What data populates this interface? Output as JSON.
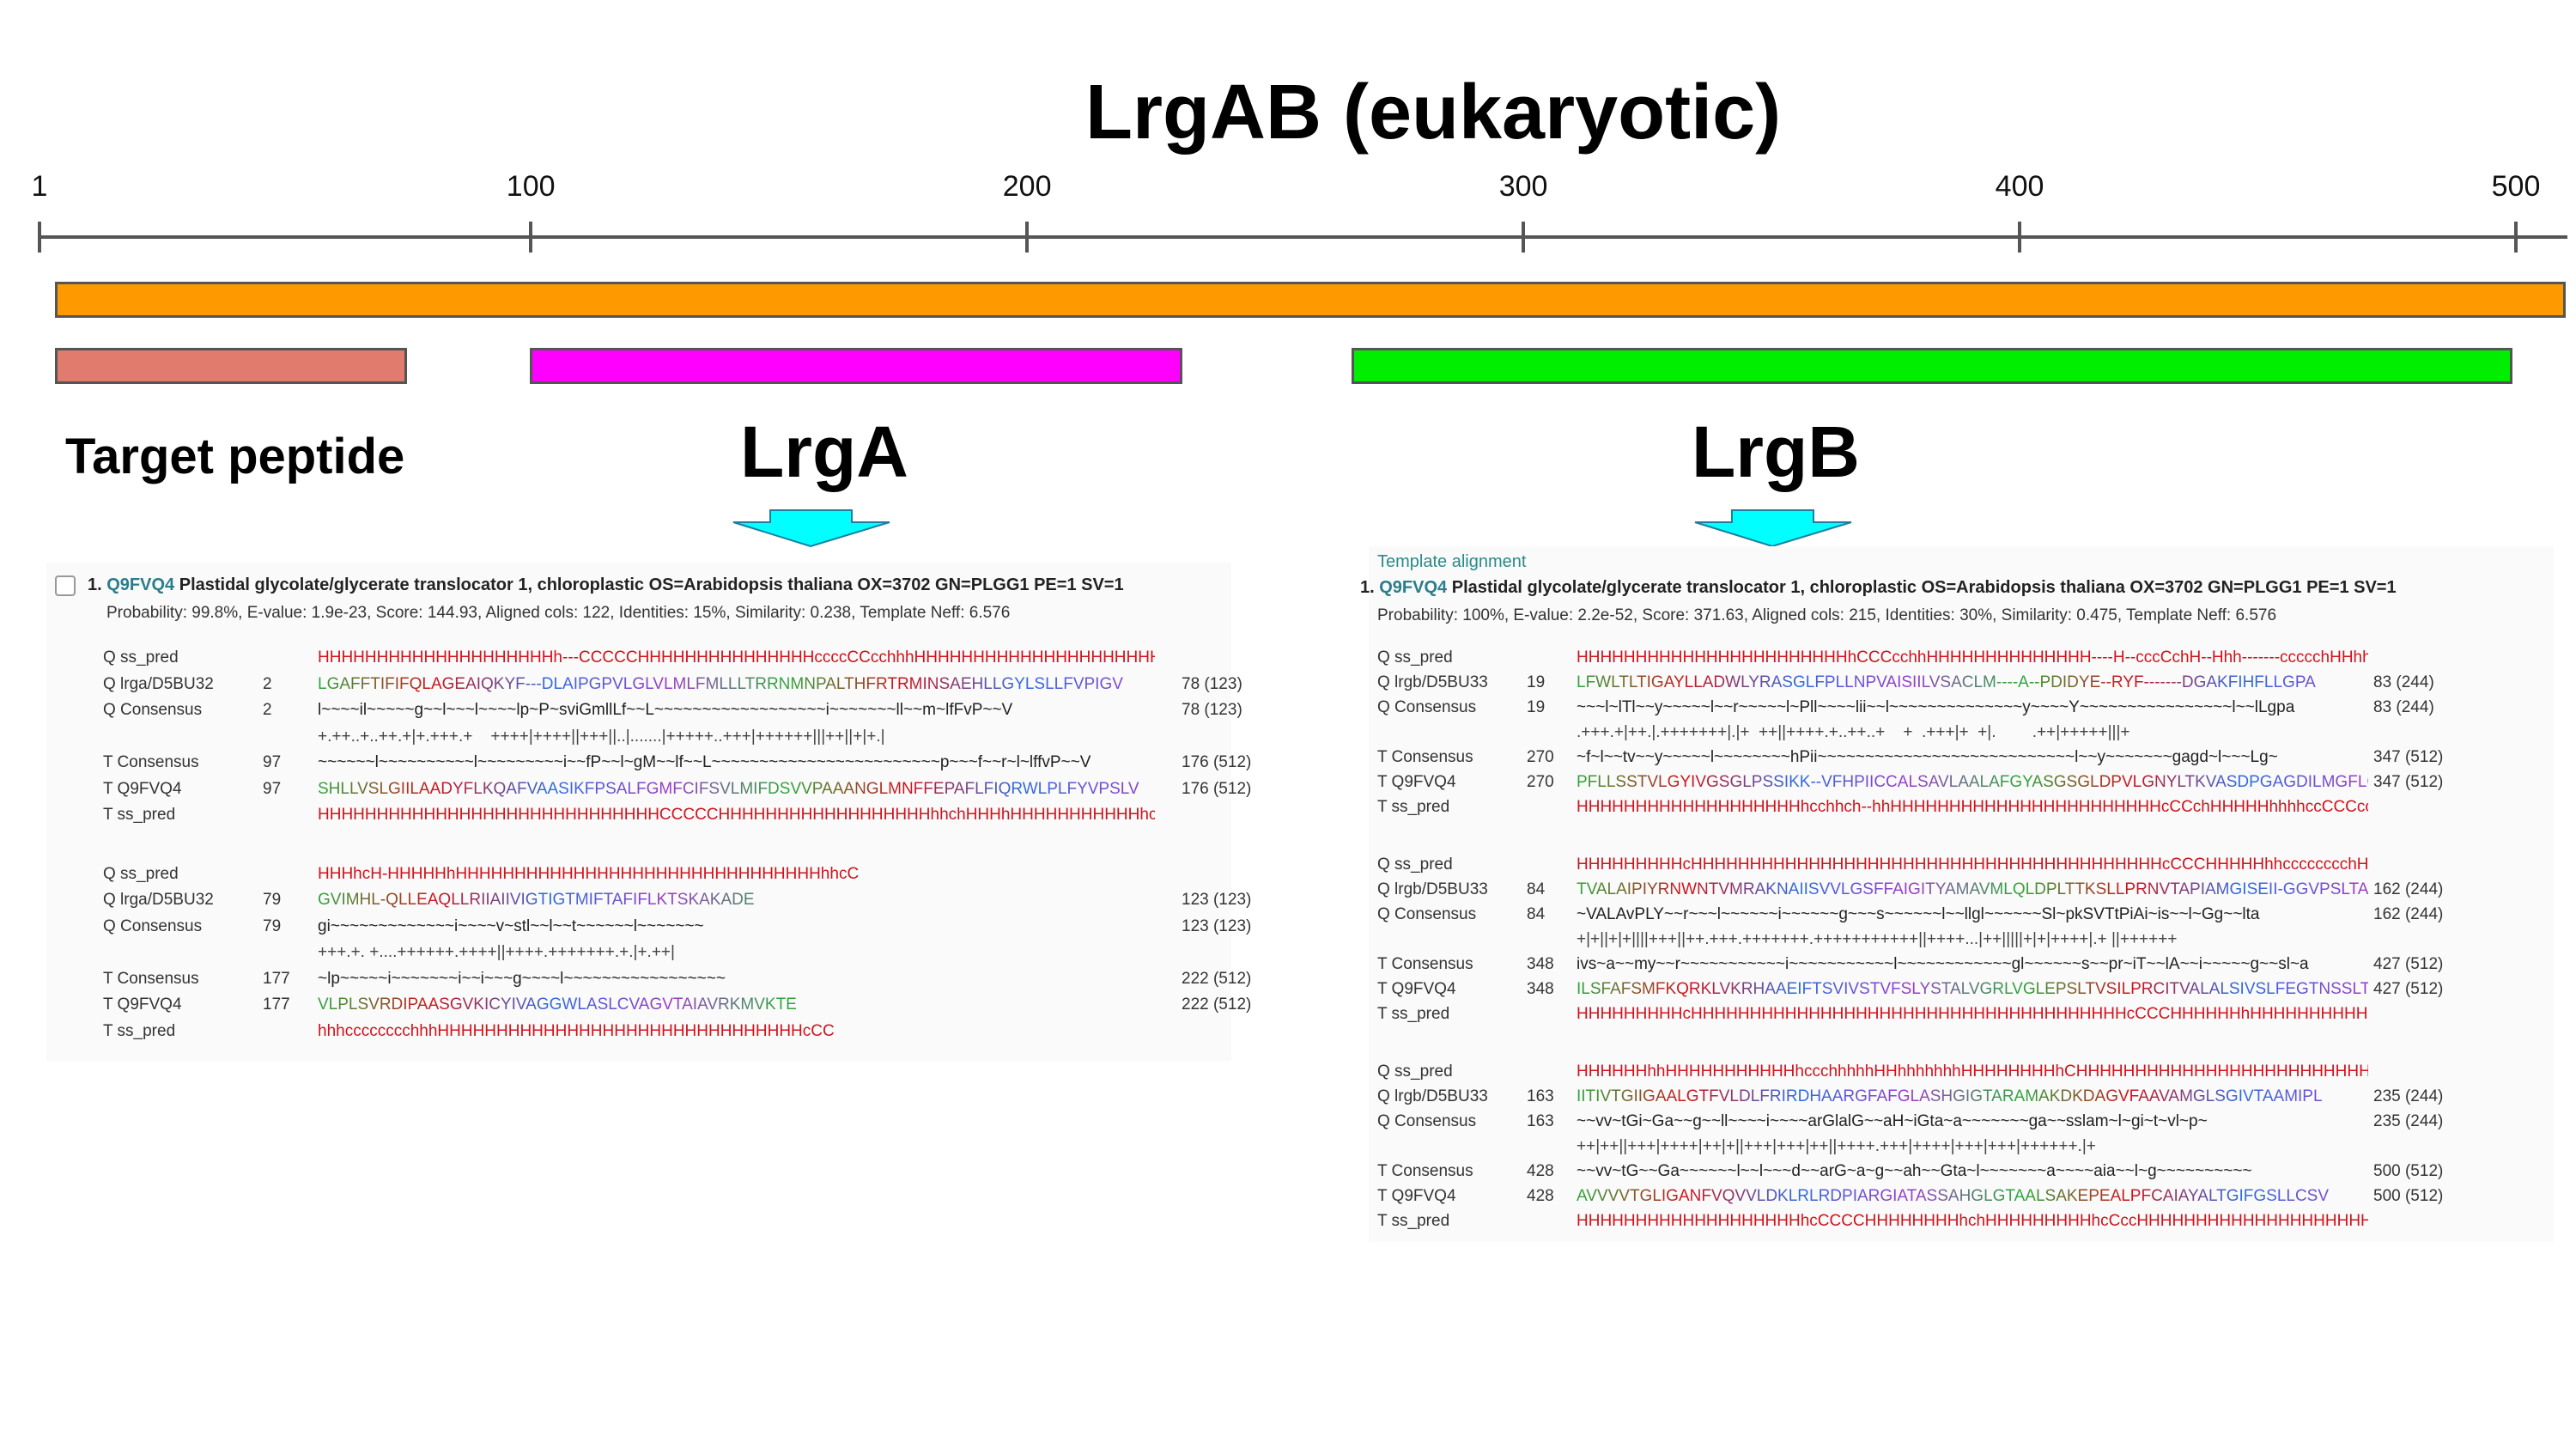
{
  "title": "LrgAB (eukaryotic)",
  "scale": {
    "ticks": [
      {
        "label": "1",
        "pos": 1
      },
      {
        "label": "100",
        "pos": 100
      },
      {
        "label": "200",
        "pos": 200
      },
      {
        "label": "300",
        "pos": 300
      },
      {
        "label": "400",
        "pos": 400
      },
      {
        "label": "500",
        "pos": 500
      }
    ]
  },
  "domains": {
    "full": {
      "color": "#ff9900"
    },
    "target": {
      "label": "Target peptide",
      "color": "#e07b6e"
    },
    "lrga": {
      "label": "LrgA",
      "color": "#ff00ff"
    },
    "lrgb": {
      "label": "LrgB",
      "color": "#00ee00"
    }
  },
  "arrow_color": "#00ffff",
  "left_panel": {
    "header_index": "1.",
    "header_id": "Q9FVQ4",
    "header_text": " Plastidal glycolate/glycerate translocator 1, chloroplastic OS=Arabidopsis thaliana OX=3702 GN=PLGG1 PE=1 SV=1",
    "stats": "Probability: 99.8%,    E-value: 1.9e-23,    Score: 144.93,    Aligned cols: 122,    Identities: 15%,    Similarity: 0.238,    Template Neff: 6.576",
    "blocks": [
      {
        "rows": [
          {
            "label": "Q ss_pred",
            "num": "",
            "seq": "HHHHHHHHHHHHHHHHHHHHh---CCCCCHHHHHHHHHHHHHHHccccCCcchhhHHHHHHHHHHHHHHHHHHHHHHHHHHHH",
            "end": "",
            "kind": "ss"
          },
          {
            "label": "Q lrga/D5BU32",
            "num": "2",
            "seq": "LGAFFTIFIFQLAGEAIQKYF---DLAIPGPVLGLVLMLFMLLLTRRNMNPALTHFRTRMINSAEHLLGYLSLLFVPIGV",
            "end": "78 (123)",
            "kind": "aa"
          },
          {
            "label": "Q Consensus",
            "num": "2",
            "seq": "l~~~~il~~~~~g~~l~~~l~~~~lp~P~sviGmllLf~~L~~~~~~~~~~~~~~~~~~i~~~~~~~ll~~m~lfFvP~~V",
            "end": "78 (123)",
            "kind": "cons"
          },
          {
            "label": "",
            "num": "",
            "seq": "+.++..+..++.+|+.+++.+    ++++|++++||+++||..|.......|+++++..+++|++++++|||++||+|+.|",
            "end": "",
            "kind": "match"
          },
          {
            "label": "T Consensus",
            "num": "97",
            "seq": "~~~~~~l~~~~~~~~~~l~~~~~~~~~i~~fP~~l~gM~~lf~~L~~~~~~~~~~~~~~~~~~~~~~~~p~~~f~~r~l~lffvP~~V",
            "end": "176 (512)",
            "kind": "cons"
          },
          {
            "label": "T Q9FVQ4",
            "num": "97",
            "seq": "SHLLVSLGIILAADYFLKQAFVAASIKFPSALFGMFCIFSVLMIFDSVVPAAANGLMNFFEPAFLFIQRWLPLFYVPSLV",
            "end": "176 (512)",
            "kind": "aa"
          },
          {
            "label": "T ss_pred",
            "num": "",
            "seq": "HHHHHHHHHHHHHHHHHHHHHHHHHHHHHCCCCCHHHHHHHHHHHHHHHHHHhhchHHHhHHHHHHHHHHHhcccccchHHc",
            "end": "",
            "kind": "ss"
          }
        ]
      },
      {
        "rows": [
          {
            "label": "Q ss_pred",
            "num": "",
            "seq": "HHHhcH-HHHHHhHHHHHHHHHHHHHHHHHHHHHHHHHHHHHHHhhcC",
            "end": "",
            "kind": "ss"
          },
          {
            "label": "Q lrga/D5BU32",
            "num": "79",
            "seq": "GVIMHL-QLLEAQLLRIIAIIVIGTIGTMIFTAFIFLKTSKAKADE",
            "end": "123 (123)",
            "kind": "aa"
          },
          {
            "label": "Q Consensus",
            "num": "79",
            "seq": "gi~~~~~~~~~~~~~i~~~~v~stl~~l~~t~~~~~~l~~~~~~~",
            "end": "123 (123)",
            "kind": "cons"
          },
          {
            "label": "",
            "num": "",
            "seq": "+++.+. +....++++++.++++||++++.+++++++.+.|+.++|",
            "end": "",
            "kind": "match"
          },
          {
            "label": "T Consensus",
            "num": "177",
            "seq": "~lp~~~~~i~~~~~~~i~~i~~~g~~~~l~~~~~~~~~~~~~~~~~",
            "end": "222 (512)",
            "kind": "cons"
          },
          {
            "label": "T Q9FVQ4",
            "num": "177",
            "seq": "VLPLSVRDIPAASGVKICYIVAGGWLASLCVAGVTAIAVRKMVKTE",
            "end": "222 (512)",
            "kind": "aa"
          },
          {
            "label": "T ss_pred",
            "num": "",
            "seq": "hhhcccccccchhhHHHHHHHHHHHHHHHHHHHHHHHHHHHHHHHcCC",
            "end": "",
            "kind": "ss"
          }
        ]
      }
    ]
  },
  "right_panel": {
    "template_label": "Template alignment",
    "header_index": "1.",
    "header_id": "Q9FVQ4",
    "header_text": " Plastidal glycolate/glycerate translocator 1, chloroplastic OS=Arabidopsis thaliana OX=3702 GN=PLGG1 PE=1 SV=1",
    "stats": "Probability: 100%,    E-value: 2.2e-52,    Score: 371.63,    Aligned cols: 215,    Identities: 30%,    Similarity: 0.475,    Template Neff: 6.576",
    "blocks": [
      {
        "rows": [
          {
            "label": "Q ss_pred",
            "num": "",
            "seq": "HHHHHHHHHHHHHHHHHHHHHHHhCCCcchhHHHHHHHHHHHHHH----H--cccCchH--Hhh-------ccccchHHhhhhhH",
            "end": "",
            "kind": "ss"
          },
          {
            "label": "Q lrgb/D5BU33",
            "num": "19",
            "seq": "LFWLTLTIGAYLLADWLYRASGLFPLLNPVAISIILVSACLM----A--PDIDYE--RYF-------DGAKFIHFLLGPA",
            "end": "83 (244)",
            "kind": "aa"
          },
          {
            "label": "Q Consensus",
            "num": "19",
            "seq": "~~~l~lTl~~y~~~~~l~~r~~~~~l~Pll~~~~lii~~l~~~~~~~~~~~~~~y~~~~Y~~~~~~~~~~~~~~~~l~~lLgpa",
            "end": "83 (244)",
            "kind": "cons"
          },
          {
            "label": "",
            "num": "",
            "seq": ".+++.+|++.|.+++++++|.|+  ++||++++.+..++..+    +  .+++|+  +|.        .++|+++++|||+",
            "end": "",
            "kind": "match"
          },
          {
            "label": "T Consensus",
            "num": "270",
            "seq": "~f~l~~tv~~y~~~~~l~~~~~~~~hPii~~~~~~~~~~~~~~~~~~~~~~~~~~~l~~y~~~~~~~gagd~l~~~Lg~",
            "end": "347 (512)",
            "kind": "cons"
          },
          {
            "label": "T Q9FVQ4",
            "num": "270",
            "seq": "PFLLSSTVLGYIVGSGLPSSIKK--VFHPIICCALSAVLAALAFGYASGSGLDPVLGNYLTKVASDPGAGDILMGFLGSV",
            "end": "347 (512)",
            "kind": "aa"
          },
          {
            "label": "T ss_pred",
            "num": "",
            "seq": "HHHHHHHHHHHHHHHHHHHhcchhch--hhHHHHHHHHHHHHHHHHHHHHHHHcCCchHHHHHhhhhccCCCcccccHHHHHHHHHH",
            "end": "",
            "kind": "ss"
          }
        ]
      },
      {
        "rows": [
          {
            "label": "Q ss_pred",
            "num": "",
            "seq": "HHHHHHHHHcHHHHHHHHHHHHHHHHHHHHHHHHHHHHHHHHHHHHHHHHcCCCHHHHHhhcccccccchHHHHHHhh-CCchHHHH",
            "end": "",
            "kind": "ss"
          },
          {
            "label": "Q lrgb/D5BU33",
            "num": "84",
            "seq": "TVALAIPIYRNWNTVMRAKNAIISVVLGSFFAIGITYAMAVMLQLDPLTTKSLLPRNVTAPIAMGISEII-GGVPSLTA",
            "end": "162 (244)",
            "kind": "aa"
          },
          {
            "label": "Q Consensus",
            "num": "84",
            "seq": "~VALAvPLY~~r~~~l~~~~~~i~~~~~~g~~~s~~~~~~l~~llgl~~~~~~Sl~pkSVTtPiAi~is~~l~Gg~~lta",
            "end": "162 (244)",
            "kind": "cons"
          },
          {
            "label": "",
            "num": "",
            "seq": "+|+||+|+||||+++||++.+++.+++++++.+++++++++++||++++...|++|||||+|+|++++|.+ ||++++++",
            "end": "",
            "kind": "match"
          },
          {
            "label": "T Consensus",
            "num": "348",
            "seq": "ivs~a~~my~~r~~~~~~~~~~~i~~~~~~~~~~~l~~~~~~~~~~~~gl~~~~~~s~~pr~iT~~lA~~i~~~~~g~~sl~a",
            "end": "427 (512)",
            "kind": "cons"
          },
          {
            "label": "T Q9FVQ4",
            "num": "348",
            "seq": "ILSFAFSMFKQRKLVKRHAAEIFTSVIVSTVFSLYSTALVGRLVGLEPSLTVSILPRCITVALALSIVSLFEGTNSSLTA",
            "end": "427 (512)",
            "kind": "aa"
          },
          {
            "label": "T ss_pred",
            "num": "",
            "seq": "HHHHHHHHHcHHHHHHHHHHHHHHHHHHHHHHHHHHHHHHHHHHHHHcCCCHHHHHHhHHHHHHHHHHHHHHHHhccccHHHHH",
            "end": "",
            "kind": "ss"
          }
        ]
      },
      {
        "rows": [
          {
            "label": "Q ss_pred",
            "num": "",
            "seq": "HHHHHHhhHHHHHHHHHHHhccchhhhhHHhhhhhhhHHHHHHHHhCHHHHHHHHHHHHHHHHHHHHHHHHH",
            "end": "",
            "kind": "ss"
          },
          {
            "label": "Q lrgb/D5BU33",
            "num": "163",
            "seq": "IITIVTGIIGAALGTFVLDLFRIRDHAARGFAFGLASHGIGTARAMAKDKDAGVFAAVAMGLSGIVTAAMIPL",
            "end": "235 (244)",
            "kind": "aa"
          },
          {
            "label": "Q Consensus",
            "num": "163",
            "seq": "~~vv~tGi~Ga~~g~~ll~~~~i~~~~arGlalG~~aH~iGta~a~~~~~~~ga~~sslam~l~gi~t~vl~p~",
            "end": "235 (244)",
            "kind": "cons"
          },
          {
            "label": "",
            "num": "",
            "seq": "++|++||+++|++++|++|+||+++|+++|++||++++.+++|++++|+++|+++|++++++.|+",
            "end": "",
            "kind": "match"
          },
          {
            "label": "T Consensus",
            "num": "428",
            "seq": "~~vv~tG~~Ga~~~~~~l~~l~~~d~~arG~a~g~~ah~~Gta~l~~~~~~~a~~~~aia~~l~g~~~~~~~~~~",
            "end": "500 (512)",
            "kind": "cons"
          },
          {
            "label": "T Q9FVQ4",
            "num": "428",
            "seq": "AVVVVTGLIGANFVQVVLDKLRLRDPIARGIATASSAHGLGTAALSAKEPEALPFCAIAYALTGIFGSLLCSV",
            "end": "500 (512)",
            "kind": "aa"
          },
          {
            "label": "T ss_pred",
            "num": "",
            "seq": "HHHHHHHHHHHHHHHHHHHhcCCCCHHHHHHHHhchHHHHHHHHHhcCccHHHHHHHHHHHHHHHHHHHHHHHch",
            "end": "",
            "kind": "ss"
          }
        ]
      }
    ]
  }
}
